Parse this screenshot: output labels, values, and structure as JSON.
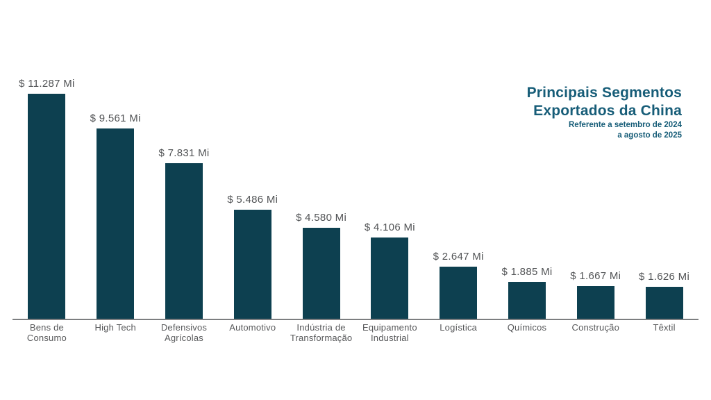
{
  "header": {
    "title_line1": "Principais Segmentos",
    "title_line2_prefix": "Exportados da ",
    "title_line2_bold": "China",
    "subtitle_line1": "Referente a setembro de 2024",
    "subtitle_line2": "a agosto de 2025"
  },
  "colors": {
    "bar": "#0d4050",
    "title": "#175d78",
    "value_label": "#515355",
    "category_label": "#57585a",
    "axis_line": "#7c7e80",
    "background": "#ffffff"
  },
  "chart_data": {
    "type": "bar",
    "title": "Principais Segmentos Exportados da China",
    "subtitle": "Referente a setembro de 2024 a agosto de 2025",
    "unit": "Mi",
    "currency": "$",
    "grid": false,
    "legend": false,
    "ymax": 11287,
    "categories": [
      "Bens de Consumo",
      "High Tech",
      "Defensivos Agrícolas",
      "Automotivo",
      "Indústria de Transformação",
      "Equipamento Industrial",
      "Logística",
      "Químicos",
      "Construção",
      "Têxtil"
    ],
    "values": [
      11287,
      9561,
      7831,
      5486,
      4580,
      4106,
      2647,
      1885,
      1667,
      1626
    ],
    "value_labels": [
      "$ 11.287 Mi",
      "$ 9.561 Mi",
      "$ 7.831 Mi",
      "$ 5.486 Mi",
      "$ 4.580 Mi",
      "$ 4.106 Mi",
      "$ 2.647 Mi",
      "$ 1.885 Mi",
      "$ 1.667 Mi",
      "$ 1.626 Mi"
    ],
    "category_labels_lines": [
      [
        "Bens de",
        "Consumo"
      ],
      [
        "High Tech"
      ],
      [
        "Defensivos",
        "Agrícolas"
      ],
      [
        "Automotivo"
      ],
      [
        "Indústria de",
        "Transformação"
      ],
      [
        "Equipamento",
        "Industrial"
      ],
      [
        "Logística"
      ],
      [
        "Químicos"
      ],
      [
        "Construção"
      ],
      [
        "Têxtil"
      ]
    ]
  }
}
